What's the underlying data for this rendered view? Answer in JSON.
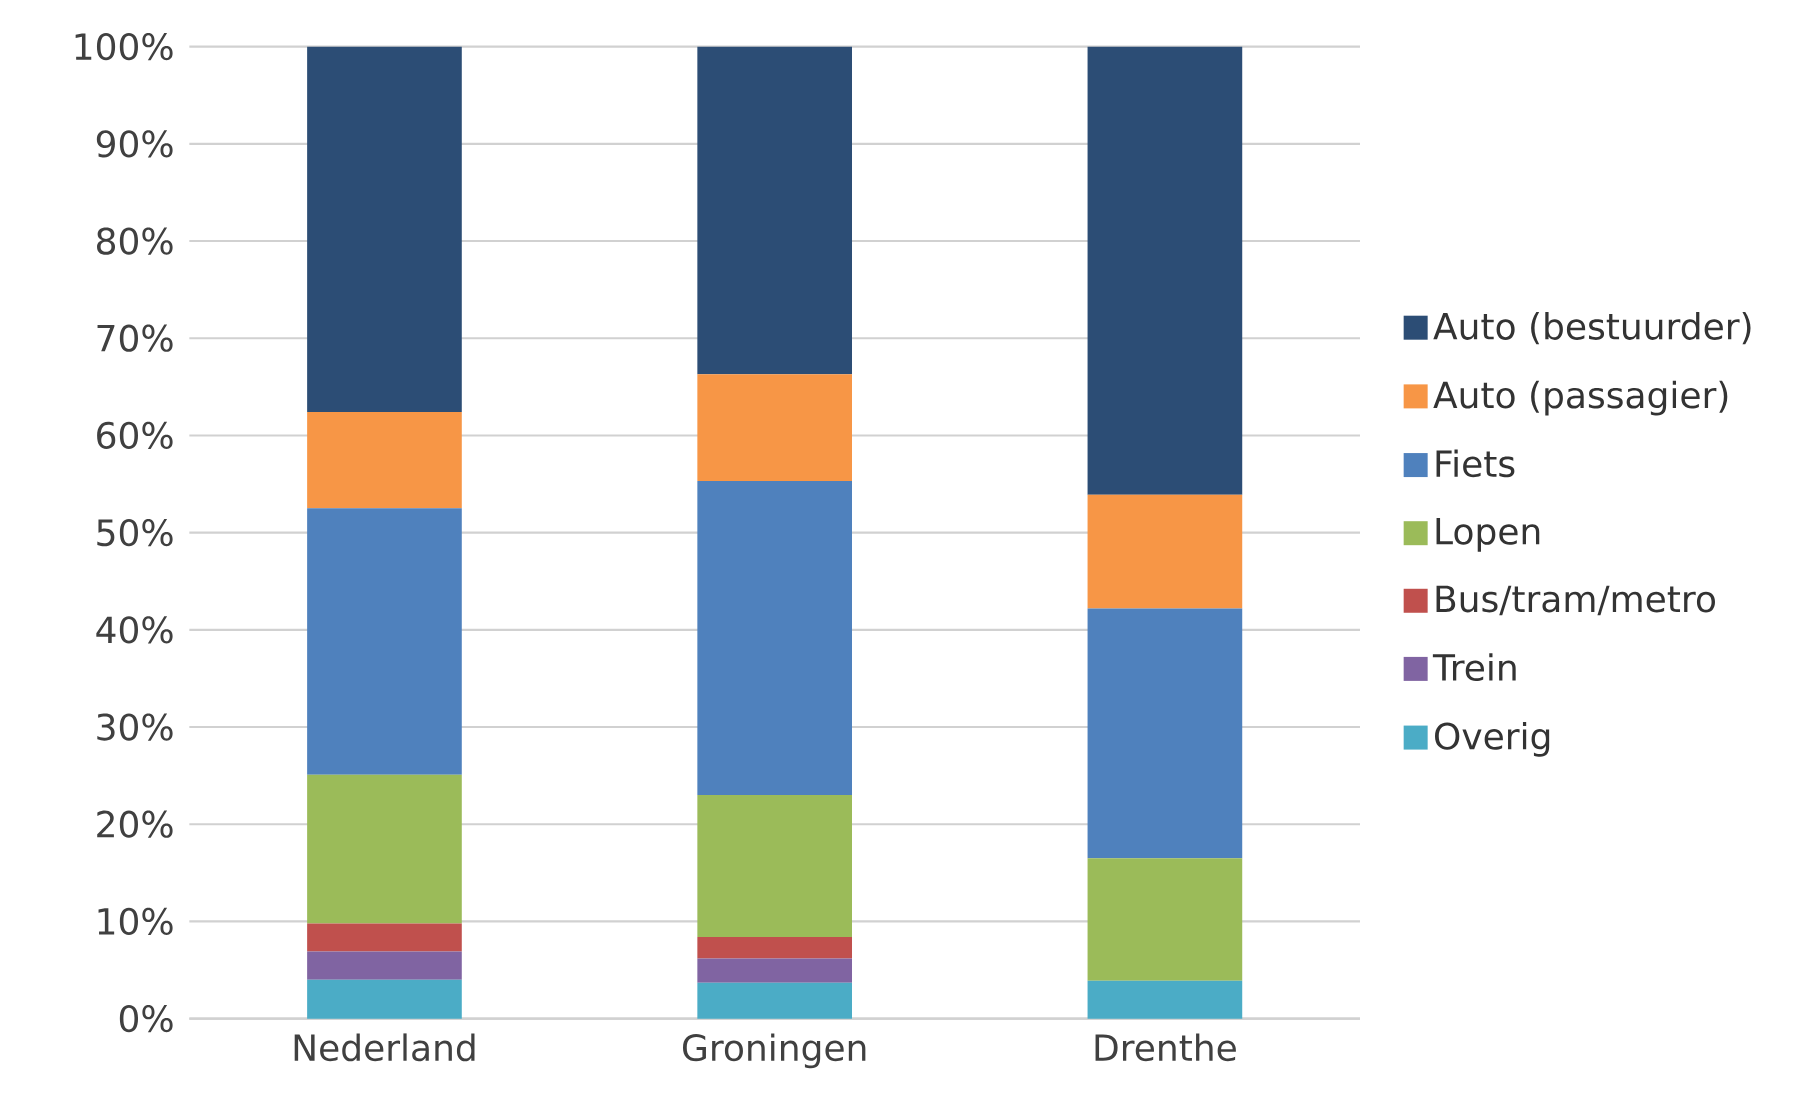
{
  "chart_data": {
    "type": "bar",
    "stacked": true,
    "categories": [
      "Nederland",
      "Groningen",
      "Drenthe"
    ],
    "series": [
      {
        "name": "Overig",
        "color": "#4bacc6",
        "values": [
          4.0,
          3.7,
          3.9
        ]
      },
      {
        "name": "Trein",
        "color": "#8064a2",
        "values": [
          2.9,
          2.5,
          0
        ]
      },
      {
        "name": "Bus/tram/metro",
        "color": "#c0504d",
        "values": [
          2.9,
          2.2,
          0
        ]
      },
      {
        "name": "Lopen",
        "color": "#9bbb59",
        "values": [
          15.3,
          14.6,
          12.6
        ]
      },
      {
        "name": "Fiets",
        "color": "#4f81bd",
        "values": [
          27.4,
          32.3,
          25.7
        ]
      },
      {
        "name": "Auto  (passagier)",
        "color": "#f79646",
        "values": [
          9.9,
          11.0,
          11.7
        ]
      },
      {
        "name": "Auto (bestuurder)",
        "color": "#2c4d75",
        "values": [
          37.6,
          33.7,
          46.1
        ]
      }
    ],
    "ylim": [
      0,
      100
    ],
    "yticks": [
      {
        "value": 0,
        "label": "0%"
      },
      {
        "value": 10,
        "label": "10%"
      },
      {
        "value": 20,
        "label": "20%"
      },
      {
        "value": 30,
        "label": "30%"
      },
      {
        "value": 40,
        "label": "40%"
      },
      {
        "value": 50,
        "label": "50%"
      },
      {
        "value": 60,
        "label": "60%"
      },
      {
        "value": 70,
        "label": "70%"
      },
      {
        "value": 80,
        "label": "80%"
      },
      {
        "value": 90,
        "label": "90%"
      },
      {
        "value": 100,
        "label": "100%"
      }
    ],
    "grid": "y",
    "legend": "right"
  }
}
